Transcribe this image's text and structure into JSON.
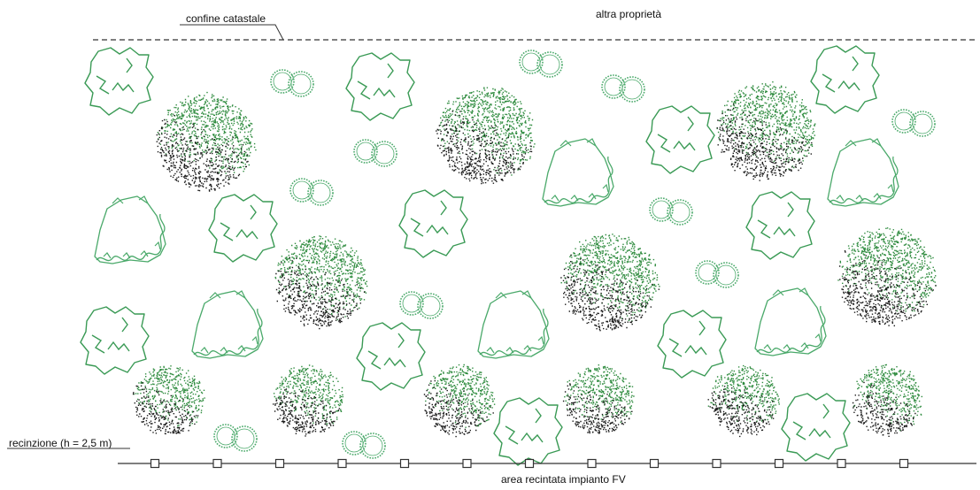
{
  "labels": {
    "cadastral_boundary": "confine catastale",
    "other_property": "altra proprietà",
    "fence": "recinzione (h = 2,5 m)",
    "fenced_area": "area recintata impianto FV"
  },
  "colors": {
    "line": "#333333",
    "shrub_outline": "#3a9a55",
    "hedge_outline": "#4aa96a",
    "canopy_green": "#2e8b3e",
    "canopy_dark": "#1a1a1a"
  },
  "symbols": {
    "large_shrub": "irregular-outline-shrub-icon",
    "small_shrub_pair": "twin-round-shrub-icon",
    "tree_canopy": "stippled-tree-canopy-icon",
    "fence_post": "square-fence-post-icon"
  }
}
